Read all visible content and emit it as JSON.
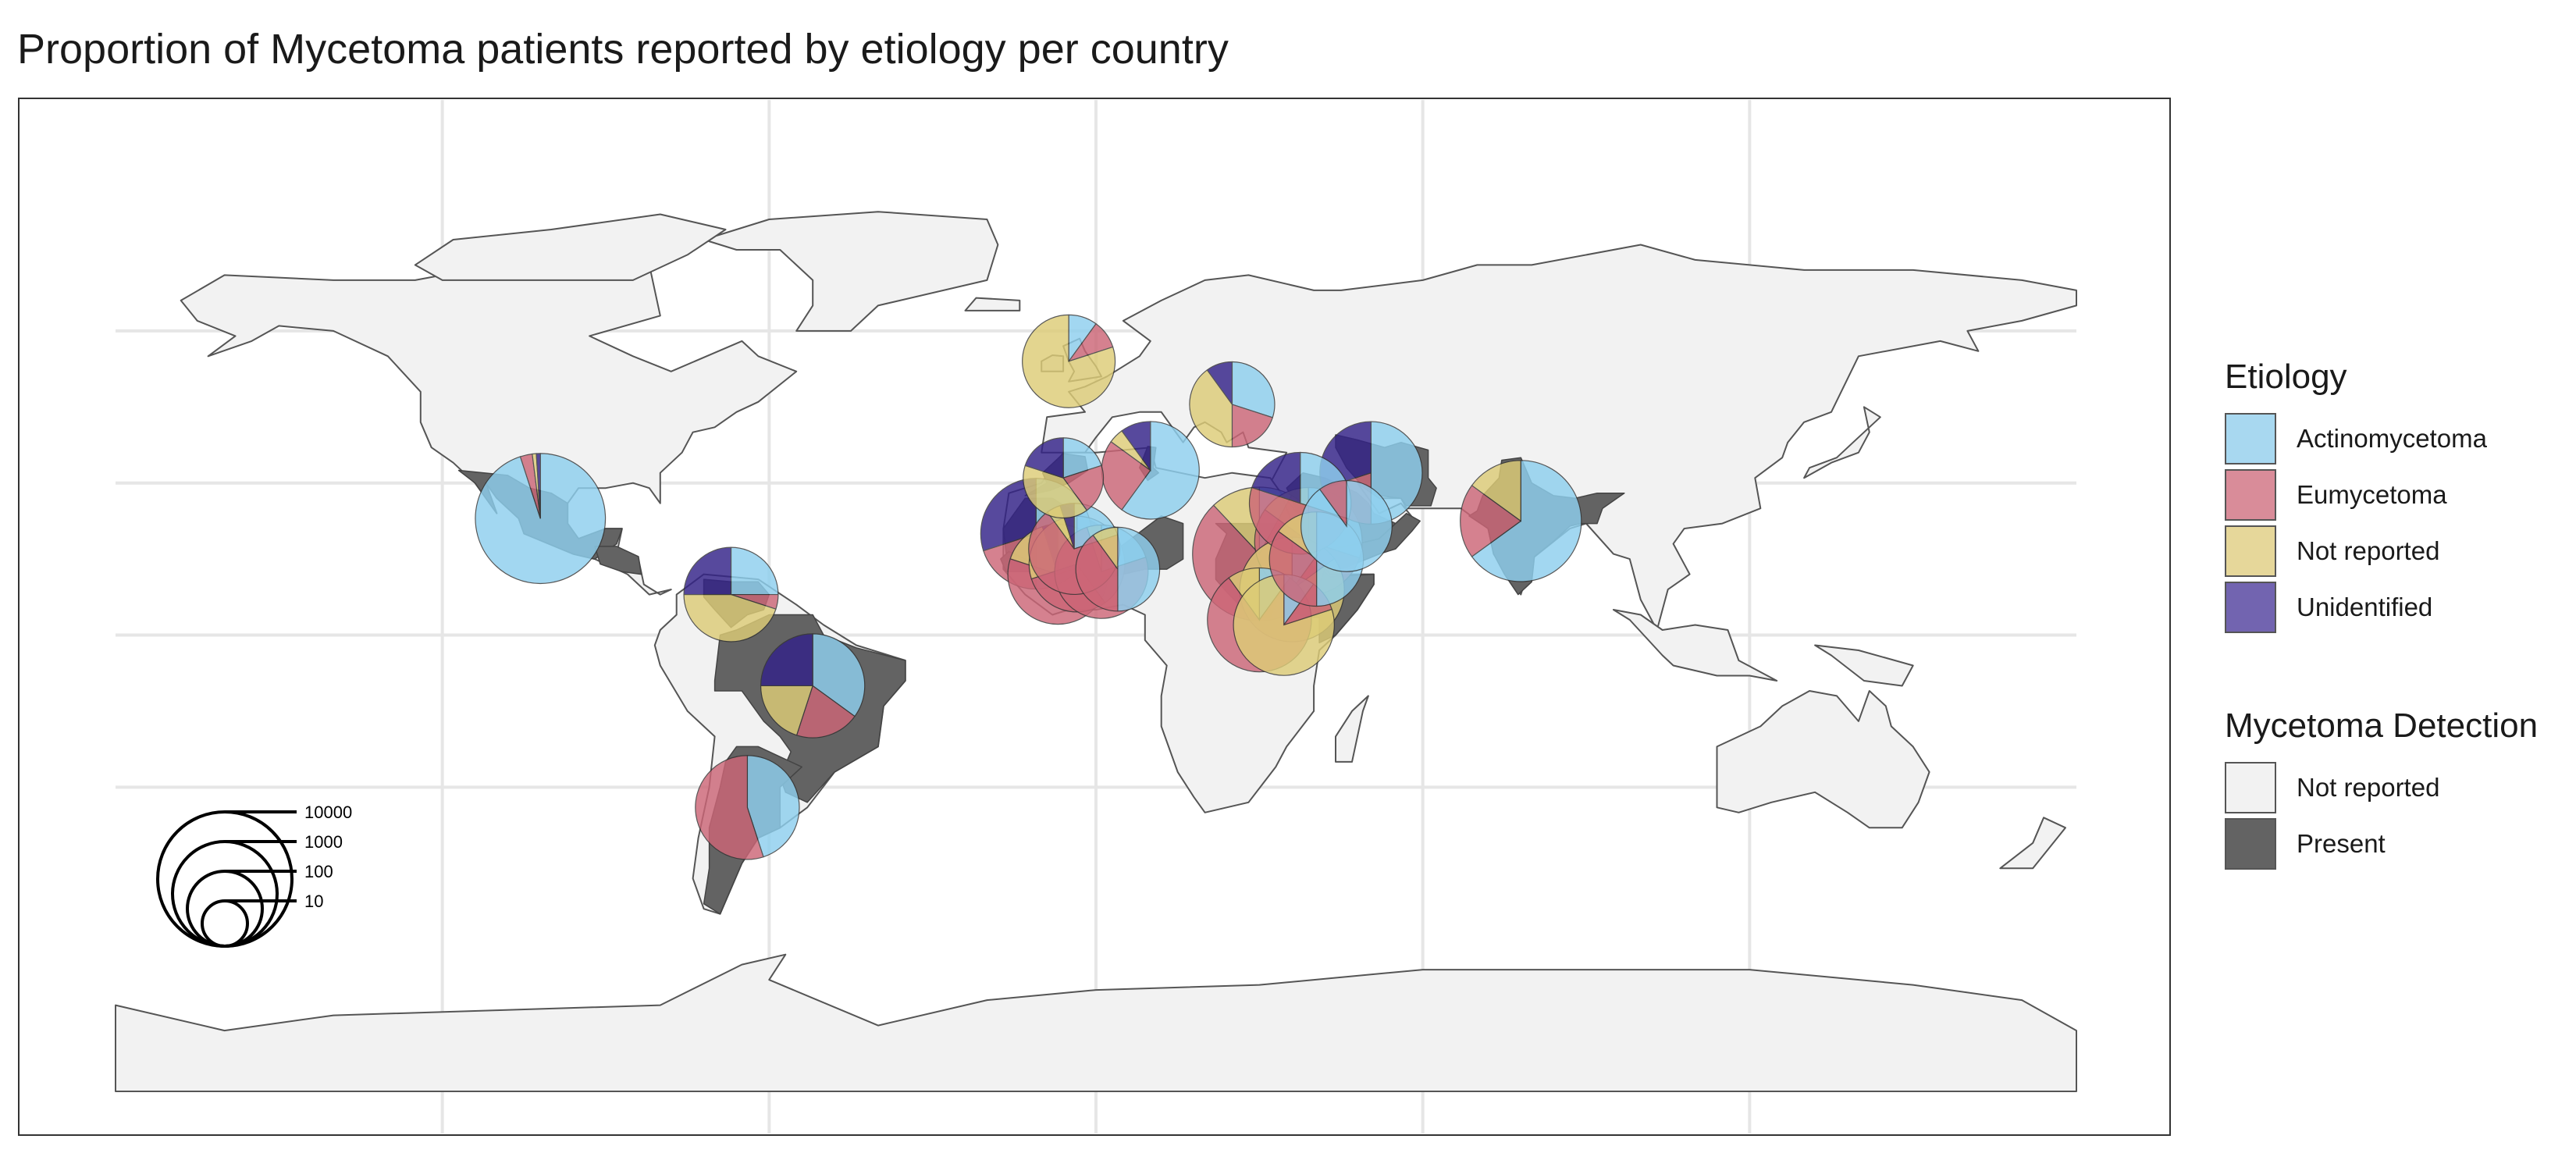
{
  "title": "Proportion of Mycetoma patients reported by etiology per country",
  "colors": {
    "actinomycetoma": "#8ecfee",
    "eumycetoma": "#cc6677",
    "not_reported": "#ddcc77",
    "unidentified": "#332288",
    "land": "#f2f2f2",
    "present": "#636363",
    "grid": "#e6e6e6",
    "border": "#555555"
  },
  "legend": {
    "etiology": {
      "title": "Etiology",
      "items": [
        {
          "label": "Actinomycetoma",
          "color": "#a8d8f0"
        },
        {
          "label": "Eumycetoma",
          "color": "#d98c99"
        },
        {
          "label": "Not reported",
          "color": "#e6d79a"
        },
        {
          "label": "Unidentified",
          "color": "#7264b0"
        }
      ]
    },
    "detection": {
      "title": "Mycetoma Detection",
      "items": [
        {
          "label": "Not reported",
          "color": "#f2f2f2"
        },
        {
          "label": "Present",
          "color": "#636363"
        }
      ]
    }
  },
  "size_legend": {
    "values": [
      10000,
      1000,
      100,
      10
    ],
    "labels": [
      "10000",
      "1000",
      "100",
      "10"
    ]
  },
  "chart_data": {
    "type": "pie",
    "map_type": "world choropleth with pie glyphs",
    "series_names": [
      "Actinomycetoma",
      "Eumycetoma",
      "Not reported",
      "Unidentified"
    ],
    "countries": [
      {
        "name": "Mexico",
        "lon": -102,
        "lat": 23,
        "total": 7200,
        "values": [
          0.95,
          0.03,
          0.01,
          0.01
        ]
      },
      {
        "name": "Venezuela",
        "lon": -67,
        "lat": 8,
        "total": 450,
        "values": [
          0.25,
          0.05,
          0.45,
          0.25
        ]
      },
      {
        "name": "Brazil",
        "lon": -52,
        "lat": -10,
        "total": 950,
        "values": [
          0.35,
          0.2,
          0.2,
          0.25
        ]
      },
      {
        "name": "Argentina",
        "lon": -64,
        "lat": -34,
        "total": 950,
        "values": [
          0.45,
          0.55,
          0.0,
          0.0
        ]
      },
      {
        "name": "United Kingdom",
        "lon": -5,
        "lat": 54,
        "total": 400,
        "values": [
          0.1,
          0.1,
          0.8,
          0.0
        ]
      },
      {
        "name": "Romania",
        "lon": 25,
        "lat": 45.5,
        "total": 220,
        "values": [
          0.3,
          0.2,
          0.4,
          0.1
        ]
      },
      {
        "name": "Morocco",
        "lon": -6,
        "lat": 31,
        "total": 150,
        "values": [
          0.2,
          0.2,
          0.4,
          0.2
        ]
      },
      {
        "name": "Tunisia",
        "lon": 10,
        "lat": 32.5,
        "total": 580,
        "values": [
          0.6,
          0.25,
          0.05,
          0.1
        ]
      },
      {
        "name": "Mauritania",
        "lon": -11,
        "lat": 20,
        "total": 1600,
        "values": [
          0.5,
          0.2,
          0.0,
          0.3
        ]
      },
      {
        "name": "Mali",
        "lon": -4,
        "lat": 17,
        "total": 350,
        "values": [
          0.2,
          0.7,
          0.05,
          0.05
        ]
      },
      {
        "name": "Senegal",
        "lon": -7,
        "lat": 12,
        "total": 700,
        "values": [
          0.2,
          0.6,
          0.15,
          0.05
        ]
      },
      {
        "name": "Cote d'Ivoire",
        "lon": -3.5,
        "lat": 14,
        "total": 500,
        "values": [
          0.4,
          0.3,
          0.3,
          0.0
        ]
      },
      {
        "name": "Niger",
        "lon": 1,
        "lat": 12.5,
        "total": 420,
        "values": [
          0.2,
          0.75,
          0.05,
          0.0
        ]
      },
      {
        "name": "Nigeria",
        "lon": 4,
        "lat": 13,
        "total": 200,
        "values": [
          0.5,
          0.4,
          0.1,
          0.0
        ]
      },
      {
        "name": "Sudan",
        "lon": 30,
        "lat": 16,
        "total": 9500,
        "values": [
          0.08,
          0.8,
          0.12,
          0.0
        ]
      },
      {
        "name": "Chad",
        "lon": 30,
        "lat": 3,
        "total": 950,
        "values": [
          0.1,
          0.8,
          0.1,
          0.0
        ]
      },
      {
        "name": "Ethiopia",
        "lon": 36,
        "lat": 9,
        "total": 1000,
        "values": [
          0.1,
          0.05,
          0.85,
          0.0
        ]
      },
      {
        "name": "Somalia",
        "lon": 34.5,
        "lat": 2,
        "total": 750,
        "values": [
          0.1,
          0.1,
          0.8,
          0.0
        ]
      },
      {
        "name": "Saudi Arabia",
        "lon": 39,
        "lat": 18.5,
        "total": 1250,
        "values": [
          0.3,
          0.55,
          0.15,
          0.0
        ]
      },
      {
        "name": "Egypt",
        "lon": 37.5,
        "lat": 26,
        "total": 800,
        "values": [
          0.3,
          0.5,
          0.0,
          0.2
        ]
      },
      {
        "name": "Yemen",
        "lon": 40.5,
        "lat": 15,
        "total": 450,
        "values": [
          0.5,
          0.35,
          0.15,
          0.0
        ]
      },
      {
        "name": "Oman",
        "lon": 46,
        "lat": 21.5,
        "total": 350,
        "values": [
          0.9,
          0.1,
          0.0,
          0.0
        ]
      },
      {
        "name": "Iran",
        "lon": 50.5,
        "lat": 32,
        "total": 850,
        "values": [
          0.5,
          0.2,
          0.0,
          0.3
        ]
      },
      {
        "name": "India",
        "lon": 78,
        "lat": 22.5,
        "total": 3600,
        "values": [
          0.65,
          0.2,
          0.15,
          0.0
        ]
      }
    ],
    "present_countries": [
      "Mexico",
      "Guatemala",
      "Honduras",
      "Venezuela",
      "Colombia",
      "Brazil",
      "Argentina",
      "Paraguay",
      "Uruguay",
      "Mauritania",
      "Mali",
      "Senegal",
      "Niger",
      "Sudan",
      "Chad",
      "Ethiopia",
      "Somalia",
      "Saudi Arabia",
      "Yemen",
      "Oman",
      "Iran",
      "India",
      "Morocco",
      "Tunisia"
    ]
  }
}
